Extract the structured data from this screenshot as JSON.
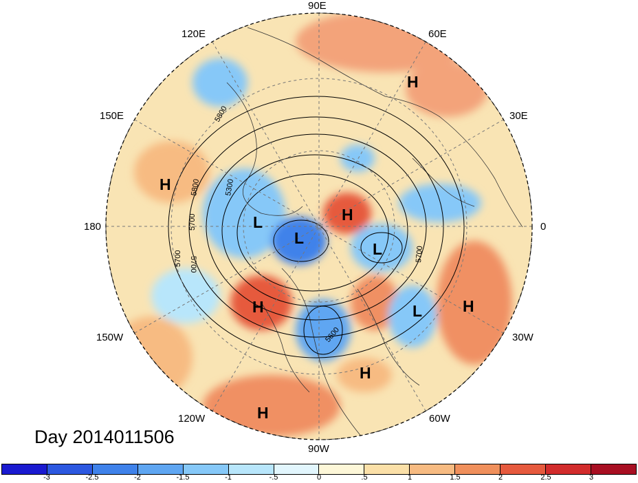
{
  "title": "Day 2014011506",
  "longitude_labels": [
    "90E",
    "60E",
    "120E",
    "30E",
    "150E",
    "180",
    "0",
    "150W",
    "30W",
    "120W",
    "60W",
    "90W"
  ],
  "contour_labels": [
    "5800",
    "5800",
    "5300",
    "5700",
    "5700",
    "5700",
    "5700",
    "5600"
  ],
  "pressure_systems": [
    "H",
    "H",
    "L",
    "L",
    "H",
    "L",
    "H",
    "L",
    "H",
    "H",
    "H"
  ],
  "colorbar": {
    "ticks": [
      "-3",
      "-2.5",
      "-2",
      "-1.5",
      "-1",
      "-.5",
      "0",
      ".5",
      "1",
      "1.5",
      "2",
      "2.5",
      "3"
    ],
    "colors": [
      "#1a1ad0",
      "#2c58e0",
      "#3f82ea",
      "#5fa6f2",
      "#86c8f8",
      "#b8e6fb",
      "#e2f6fd",
      "#fdf7d8",
      "#fbe0a8",
      "#f7bb82",
      "#f0905c",
      "#e65a3e",
      "#d22c2c",
      "#a80f22"
    ]
  }
}
